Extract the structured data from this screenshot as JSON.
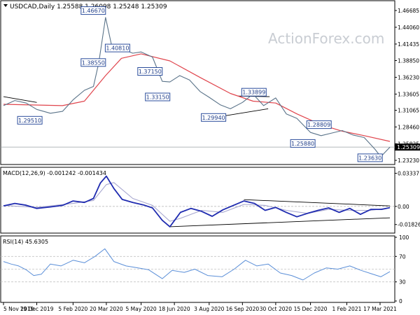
{
  "chart_data": [
    {
      "type": "line",
      "title": "USDCAD,Daily  1.25588 1.26098 1.25248 1.25309",
      "watermark": "ActionForex.com",
      "ylim": [
        1.228,
        1.48
      ],
      "y_ticks": [
        "1.46685",
        "1.44060",
        "1.41435",
        "1.38850",
        "1.36230",
        "1.33605",
        "1.31065",
        "1.28460",
        "1.25835",
        "1.23230"
      ],
      "y_tick_values": [
        1.46685,
        1.4406,
        1.41435,
        1.3885,
        1.3623,
        1.33605,
        1.31065,
        1.2846,
        1.25835,
        1.2323
      ],
      "current_price": "1.25309",
      "current_price_value": 1.25309,
      "x_ticks": [
        "5 Nov 2019",
        "19 Dec 2019",
        "5 Feb 2020",
        "20 Mar 2020",
        "5 May 2020",
        "18 Jun 2020",
        "3 Aug 2020",
        "16 Sep 2020",
        "30 Oct 2020",
        "15 Dec 2020",
        "1 Feb 2021",
        "17 Mar 2021"
      ],
      "x_tick_dates": [
        "2019-11-05",
        "2019-12-19",
        "2020-02-05",
        "2020-03-20",
        "2020-05-05",
        "2020-06-18",
        "2020-08-03",
        "2020-09-16",
        "2020-10-30",
        "2020-12-15",
        "2021-02-01",
        "2021-03-17"
      ],
      "series": [
        {
          "role": "price",
          "color": "#5a7389",
          "x": [
            "2019-11-05",
            "2019-11-20",
            "2019-12-05",
            "2019-12-19",
            "2020-01-06",
            "2020-01-22",
            "2020-02-05",
            "2020-02-20",
            "2020-03-03",
            "2020-03-10",
            "2020-03-19",
            "2020-03-27",
            "2020-04-09",
            "2020-04-24",
            "2020-05-05",
            "2020-05-20",
            "2020-06-02",
            "2020-06-12",
            "2020-06-25",
            "2020-07-08",
            "2020-07-22",
            "2020-08-03",
            "2020-08-18",
            "2020-08-31",
            "2020-09-16",
            "2020-09-30",
            "2020-10-14",
            "2020-10-30",
            "2020-11-13",
            "2020-11-27",
            "2020-12-15",
            "2020-12-29",
            "2021-01-12",
            "2021-01-26",
            "2021-02-09",
            "2021-02-24",
            "2021-03-10",
            "2021-03-18",
            "2021-03-30"
          ],
          "y": [
            1.318,
            1.326,
            1.322,
            1.312,
            1.306,
            1.309,
            1.327,
            1.342,
            1.348,
            1.385,
            1.456,
            1.412,
            1.407,
            1.4,
            1.402,
            1.394,
            1.356,
            1.355,
            1.365,
            1.358,
            1.34,
            1.331,
            1.319,
            1.313,
            1.323,
            1.336,
            1.318,
            1.33,
            1.305,
            1.298,
            1.276,
            1.271,
            1.275,
            1.279,
            1.272,
            1.268,
            1.25,
            1.238,
            1.253
          ]
        },
        {
          "role": "moving-average",
          "color": "#e0454d",
          "x": [
            "2019-11-05",
            "2020-01-22",
            "2020-02-20",
            "2020-03-19",
            "2020-04-09",
            "2020-05-05",
            "2020-06-12",
            "2020-07-22",
            "2020-08-31",
            "2020-09-30",
            "2020-10-30",
            "2020-11-27",
            "2020-12-29",
            "2021-01-26",
            "2021-02-24",
            "2021-03-30"
          ],
          "y": [
            1.32,
            1.318,
            1.325,
            1.365,
            1.392,
            1.399,
            1.388,
            1.362,
            1.337,
            1.325,
            1.322,
            1.305,
            1.288,
            1.278,
            1.271,
            1.262
          ]
        }
      ],
      "trendlines": [
        {
          "from_x": "2019-11-05",
          "from_y": 1.332,
          "to_x": "2019-12-19",
          "to_y": 1.323
        },
        {
          "from_x": "2020-08-03",
          "from_y": 1.298,
          "to_x": "2020-10-20",
          "to_y": 1.313
        },
        {
          "from_x": "2020-09-10",
          "from_y": 1.333,
          "to_x": "2020-10-22",
          "to_y": 1.332
        }
      ],
      "annotations": [
        {
          "text": "1.46670",
          "x": "2020-03-19",
          "y": 1.4667,
          "align": "right"
        },
        {
          "text": "1.38550",
          "x": "2020-03-19",
          "y": 1.3855,
          "align": "right"
        },
        {
          "text": "1.40810",
          "x": "2020-04-20",
          "y": 1.4081,
          "align": "right"
        },
        {
          "text": "1.37150",
          "x": "2020-06-02",
          "y": 1.3715,
          "align": "right"
        },
        {
          "text": "1.33150",
          "x": "2020-06-12",
          "y": 1.3315,
          "align": "right"
        },
        {
          "text": "1.29510",
          "x": "2019-12-26",
          "y": 1.2951,
          "align": "right"
        },
        {
          "text": "1.29940",
          "x": "2020-08-25",
          "y": 1.2994,
          "align": "right"
        },
        {
          "text": "1.33899",
          "x": "2020-09-15",
          "y": 1.339,
          "align": "left"
        },
        {
          "text": "1.28809",
          "x": "2020-12-10",
          "y": 1.2881,
          "align": "left"
        },
        {
          "text": "1.25880",
          "x": "2020-12-21",
          "y": 1.2588,
          "align": "right"
        },
        {
          "text": "1.23630",
          "x": "2021-03-20",
          "y": 1.2363,
          "align": "right"
        }
      ]
    },
    {
      "type": "line",
      "title": "MACD(12,26,9) -0.001242 -0.001434",
      "ylim": [
        -0.0255,
        0.038
      ],
      "y_ticks": [
        "0.03337",
        "0.00",
        "-0.018262"
      ],
      "y_tick_values": [
        0.03337,
        0.0,
        -0.018262
      ],
      "series": [
        {
          "role": "macd",
          "color": "#1f2bb0",
          "x": [
            "2019-11-05",
            "2019-11-20",
            "2019-12-05",
            "2019-12-19",
            "2020-01-06",
            "2020-01-22",
            "2020-02-05",
            "2020-02-20",
            "2020-03-03",
            "2020-03-12",
            "2020-03-20",
            "2020-03-30",
            "2020-04-10",
            "2020-04-24",
            "2020-05-08",
            "2020-05-20",
            "2020-06-02",
            "2020-06-12",
            "2020-06-26",
            "2020-07-10",
            "2020-07-24",
            "2020-08-07",
            "2020-08-21",
            "2020-09-04",
            "2020-09-18",
            "2020-10-02",
            "2020-10-16",
            "2020-10-30",
            "2020-11-13",
            "2020-11-27",
            "2020-12-11",
            "2020-12-25",
            "2021-01-08",
            "2021-01-22",
            "2021-02-05",
            "2021-02-19",
            "2021-03-05",
            "2021-03-19",
            "2021-03-30"
          ],
          "y": [
            0.0005,
            0.003,
            0.0012,
            -0.002,
            -0.0005,
            0.001,
            0.0055,
            0.004,
            0.008,
            0.0235,
            0.0305,
            0.018,
            0.007,
            0.004,
            0.0015,
            -0.0015,
            -0.014,
            -0.0205,
            -0.006,
            -0.002,
            -0.005,
            -0.01,
            -0.0035,
            0.001,
            0.0055,
            0.003,
            -0.004,
            -0.001,
            -0.006,
            -0.0105,
            -0.007,
            -0.004,
            -0.0015,
            -0.006,
            -0.002,
            -0.008,
            -0.003,
            -0.003,
            -0.0012
          ]
        },
        {
          "role": "signal",
          "color": "#a7a7cf",
          "x": [
            "2019-11-05",
            "2019-12-19",
            "2020-02-05",
            "2020-03-03",
            "2020-03-20",
            "2020-03-30",
            "2020-04-24",
            "2020-05-20",
            "2020-06-12",
            "2020-06-26",
            "2020-07-24",
            "2020-08-21",
            "2020-09-18",
            "2020-10-16",
            "2020-11-13",
            "2020-12-11",
            "2021-01-08",
            "2021-02-05",
            "2021-03-05",
            "2021-03-30"
          ],
          "y": [
            0.001,
            -0.001,
            0.003,
            0.006,
            0.022,
            0.024,
            0.008,
            0.001,
            -0.015,
            -0.012,
            -0.004,
            -0.006,
            0.002,
            0.001,
            -0.004,
            -0.007,
            -0.003,
            -0.004,
            -0.004,
            -0.0014
          ]
        }
      ],
      "trendlines": [
        {
          "from_x": "2020-06-12",
          "from_y": -0.0205,
          "to_x": "2021-03-30",
          "to_y": -0.0115
        },
        {
          "from_x": "2020-09-18",
          "from_y": 0.0068,
          "to_x": "2021-03-30",
          "to_y": 0.0005
        }
      ]
    },
    {
      "type": "line",
      "title": "RSI(14) 45.6305",
      "ylim": [
        0,
        100
      ],
      "y_ticks": [
        "100",
        "70",
        "30",
        "0"
      ],
      "y_tick_values": [
        100,
        70,
        30,
        0
      ],
      "guide_levels": [
        70,
        50,
        30
      ],
      "series": [
        {
          "role": "rsi",
          "color": "#5b8fd8",
          "x": [
            "2019-11-05",
            "2019-11-15",
            "2019-11-25",
            "2019-12-05",
            "2019-12-15",
            "2019-12-25",
            "2020-01-06",
            "2020-01-20",
            "2020-02-05",
            "2020-02-20",
            "2020-03-05",
            "2020-03-18",
            "2020-03-30",
            "2020-04-15",
            "2020-05-01",
            "2020-05-15",
            "2020-06-02",
            "2020-06-15",
            "2020-07-01",
            "2020-07-15",
            "2020-08-01",
            "2020-08-20",
            "2020-09-05",
            "2020-09-20",
            "2020-10-05",
            "2020-10-20",
            "2020-11-05",
            "2020-11-20",
            "2020-12-05",
            "2020-12-20",
            "2021-01-05",
            "2021-01-20",
            "2021-02-05",
            "2021-02-20",
            "2021-03-05",
            "2021-03-18",
            "2021-03-30"
          ],
          "y": [
            62,
            58,
            55,
            49,
            40,
            42,
            58,
            55,
            64,
            60,
            70,
            82,
            62,
            55,
            52,
            49,
            35,
            48,
            45,
            50,
            40,
            38,
            50,
            64,
            55,
            58,
            44,
            40,
            33,
            44,
            52,
            50,
            55,
            48,
            43,
            38,
            46
          ]
        }
      ]
    }
  ]
}
